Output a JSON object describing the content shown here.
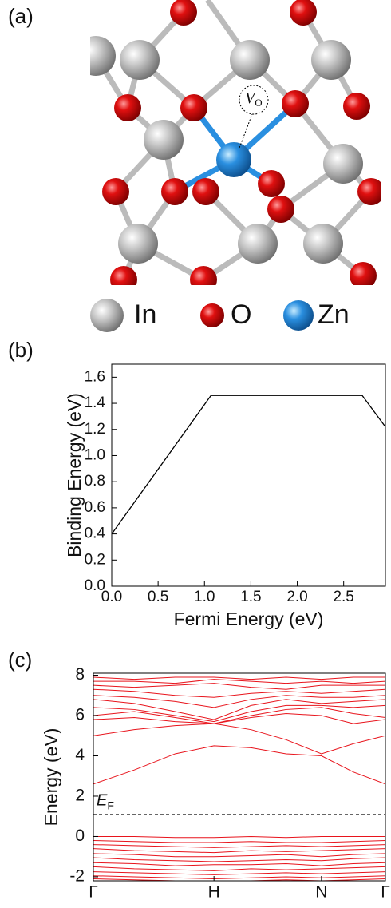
{
  "panel_labels": [
    "(a)",
    "(b)",
    "(c)"
  ],
  "structure": {
    "vacancy_label": {
      "main": "V",
      "sub": "O"
    },
    "legend": [
      "In",
      "O",
      "Zn"
    ]
  },
  "chart_data": [
    {
      "type": "line",
      "x_label": "Fermi Energy (eV)",
      "y_label": "Binding Energy (eV)",
      "x": [
        0,
        1.07,
        2.7,
        2.95
      ],
      "values": [
        0.4,
        1.46,
        1.46,
        1.22
      ],
      "color": "#000000",
      "xlim": [
        0,
        2.95
      ],
      "ylim": [
        0,
        1.7
      ],
      "xticks": [
        {
          "value": 0,
          "label": "0.0"
        },
        0.5,
        {
          "value": 1,
          "label": "1.0"
        },
        1.5,
        {
          "value": 2,
          "label": "2.0"
        },
        2.5
      ],
      "yticks": [
        {
          "value": 0,
          "label": "0.0"
        },
        0.2,
        0.4,
        0.6,
        0.8,
        {
          "value": 1,
          "label": "1.0"
        },
        1.2,
        1.4,
        1.6
      ]
    },
    {
      "type": "band",
      "y_label": "Energy (eV)",
      "color": "#e8141c",
      "x": [
        0,
        0.14,
        0.28,
        0.413,
        0.54,
        0.66,
        0.781,
        0.89,
        1
      ],
      "xlim": [
        0,
        1
      ],
      "ylim": [
        -2.2,
        8.1
      ],
      "xticks": [
        {
          "value": 0,
          "label": "Γ"
        },
        {
          "value": 0.413,
          "label": "H"
        },
        {
          "value": 0.781,
          "label": "N"
        },
        {
          "value": 1,
          "label": "Γ"
        }
      ],
      "yticks": [
        -2,
        0,
        2,
        4,
        6,
        8
      ],
      "fermi_level": 1.1,
      "fermi_label": {
        "main": "E",
        "sub": "F"
      },
      "series": [
        {
          "values": [
            2.6,
            3.3,
            4.1,
            4.5,
            4.4,
            4.1,
            4.0,
            3.2,
            2.6
          ]
        },
        {
          "values": [
            5.0,
            5.3,
            5.5,
            5.6,
            5.3,
            4.8,
            4.1,
            4.6,
            5.0
          ]
        },
        {
          "values": [
            5.8,
            5.9,
            5.7,
            5.6,
            5.9,
            6.1,
            6.0,
            5.6,
            5.8
          ]
        },
        {
          "values": [
            6.0,
            6.2,
            5.9,
            5.6,
            6.0,
            6.3,
            6.4,
            6.1,
            5.9
          ]
        },
        {
          "values": [
            6.4,
            6.3,
            6.0,
            5.7,
            6.2,
            6.5,
            6.5,
            6.4,
            6.5
          ]
        },
        {
          "values": [
            6.8,
            6.6,
            6.2,
            5.8,
            6.5,
            6.8,
            6.6,
            6.7,
            6.8
          ]
        },
        {
          "values": [
            7.0,
            6.9,
            6.7,
            6.4,
            6.8,
            7.0,
            6.9,
            6.9,
            7.0
          ]
        },
        {
          "values": [
            7.3,
            7.2,
            7.0,
            6.9,
            7.1,
            7.2,
            7.1,
            7.2,
            7.3
          ]
        },
        {
          "values": [
            7.5,
            7.4,
            7.5,
            7.6,
            7.4,
            7.3,
            7.5,
            7.5,
            7.5
          ]
        },
        {
          "values": [
            7.7,
            7.7,
            7.6,
            7.8,
            7.7,
            7.6,
            7.7,
            7.6,
            7.7
          ]
        },
        {
          "values": [
            7.9,
            7.8,
            7.9,
            7.9,
            7.8,
            7.9,
            7.8,
            7.9,
            7.9
          ]
        },
        {
          "values": [
            0.0,
            0.0,
            -0.05,
            -0.05,
            0.0,
            -0.05,
            0.0,
            0.0,
            0.0
          ]
        },
        {
          "values": [
            -0.2,
            -0.25,
            -0.3,
            -0.3,
            -0.25,
            -0.3,
            -0.3,
            -0.25,
            -0.2
          ]
        },
        {
          "values": [
            -0.4,
            -0.45,
            -0.5,
            -0.55,
            -0.5,
            -0.45,
            -0.5,
            -0.45,
            -0.4
          ]
        },
        {
          "values": [
            -0.6,
            -0.7,
            -0.75,
            -0.8,
            -0.7,
            -0.75,
            -0.7,
            -0.65,
            -0.6
          ]
        },
        {
          "values": [
            -0.85,
            -0.9,
            -1.0,
            -1.0,
            -0.95,
            -0.9,
            -1.0,
            -0.9,
            -0.85
          ]
        },
        {
          "values": [
            -1.05,
            -1.15,
            -1.2,
            -1.25,
            -1.2,
            -1.15,
            -1.2,
            -1.1,
            -1.05
          ]
        },
        {
          "values": [
            -1.3,
            -1.35,
            -1.45,
            -1.4,
            -1.4,
            -1.35,
            -1.45,
            -1.35,
            -1.3
          ]
        },
        {
          "values": [
            -1.5,
            -1.6,
            -1.65,
            -1.7,
            -1.6,
            -1.65,
            -1.6,
            -1.55,
            -1.5
          ]
        },
        {
          "values": [
            -1.75,
            -1.8,
            -1.85,
            -1.9,
            -1.85,
            -1.8,
            -1.85,
            -1.8,
            -1.75
          ]
        },
        {
          "values": [
            -1.95,
            -2.0,
            -2.05,
            -2.1,
            -2.05,
            -2.0,
            -2.05,
            -2.0,
            -1.95
          ]
        },
        {
          "values": [
            -2.1,
            -2.15,
            -2.2,
            -2.25,
            -2.2,
            -2.15,
            -2.2,
            -2.15,
            -2.1
          ]
        }
      ]
    }
  ]
}
